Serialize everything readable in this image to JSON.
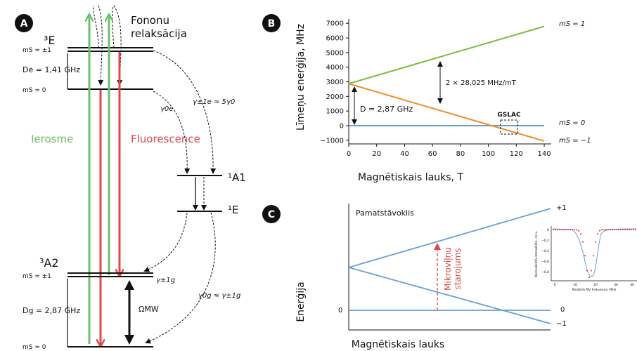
{
  "panel_a": {
    "badge": "A",
    "phonon_line1": "Fononu",
    "phonon_line2": "relaksācija",
    "level_3E": "³E",
    "ms_pm1_top": "mS = ±1",
    "De": "De = 1,41 GHz",
    "ms_0_top": "mS = 0",
    "gamma0e": "γ0e",
    "gamma_pm1e": "γ±1e ≈ 5γ0",
    "ierosme": "Ierosme",
    "fluorescence": "Fluorescence",
    "level_1A1": "¹A1",
    "level_1E": "¹E",
    "level_3A2": "³A2",
    "ms_pm1_bot": "mS = ±1",
    "gamma_pm1g": "γ±1g",
    "Dg": "Dg = 2,87 GHz",
    "omega_mw": "ΩMW",
    "gamma0g": "γ0g ≈ γ±1g",
    "ms_0_bot": "mS = 0",
    "colors": {
      "green": "#6cbf6c",
      "red": "#e0474c"
    }
  },
  "panel_b": {
    "badge": "B",
    "ylabel": "Līmeņu enerģija, MHz",
    "xlabel": "Magnētiskais lauks, T",
    "annotation_slope": "2 × 28,025 MHz/mT",
    "annotation_D": "D = 2,87 GHz",
    "gslac": "GSLAC",
    "label_ms1": "mS = 1",
    "label_ms0": "mS = 0",
    "label_msm1": "mS = −1"
  },
  "panel_c": {
    "badge": "C",
    "title": "Pamatstāvoklis",
    "ylabel": "Enerģija",
    "xlabel": "Magnētiskais lauks",
    "mw_line1": "Mikroviļņu",
    "mw_line2": "starojums",
    "label_p1": "+1",
    "label_0": "0",
    "label_m1": "−1",
    "y_zero": "0",
    "inset_ylabel": "Normalizētā intensitāte, rel.v.",
    "inset_xlabel": "Relatīvā MV frekvence, MHz",
    "inset_yticks": [
      "0",
      "−0,2",
      "−0,4",
      "−0,6",
      "−0,8"
    ],
    "inset_xticks": [
      "0",
      "10",
      "20",
      "30",
      "40"
    ]
  },
  "chart_data": [
    {
      "type": "line",
      "x": [
        0,
        140
      ],
      "series": [
        {
          "name": "mS = 1",
          "color": "#7dbb3a",
          "values": [
            2870,
            6794
          ]
        },
        {
          "name": "mS = 0",
          "color": "#6a9fd4",
          "values": [
            0,
            0
          ]
        },
        {
          "name": "mS = −1",
          "color": "#f28c28",
          "values": [
            2870,
            -1054
          ]
        }
      ],
      "xlabel": "Magnētiskais lauks, T",
      "ylabel": "Līmeņu enerģija, MHz",
      "xticks": [
        0,
        20,
        40,
        60,
        80,
        100,
        120,
        140
      ],
      "yticks": [
        -1000,
        0,
        1000,
        2000,
        3000,
        4000,
        5000,
        6000,
        7000
      ],
      "xlim": [
        0,
        145
      ],
      "ylim": [
        -1250,
        7300
      ],
      "grid": false
    }
  ]
}
